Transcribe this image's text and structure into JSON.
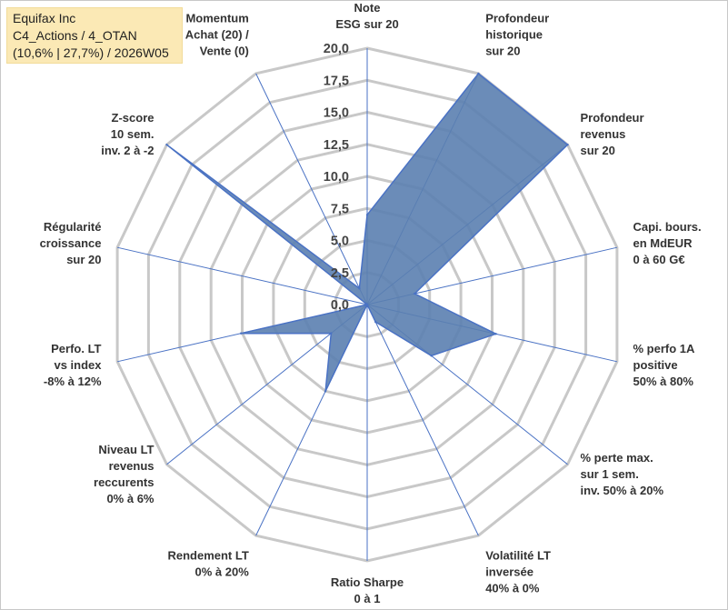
{
  "title_box": {
    "line1": "Equifax Inc",
    "line2": "C4_Actions / 4_OTAN",
    "line3": "(10,6% | 27,7%) / 2026W05"
  },
  "colors": {
    "fill": "#5b7fb0",
    "stroke": "#4a72c4",
    "grid": "#c8c8c8",
    "title_bg": "#fbe9b5"
  },
  "chart_data": {
    "type": "radar",
    "ylim": [
      0,
      20
    ],
    "ticks": [
      "0,0",
      "2,5",
      "5,0",
      "7,5",
      "10,0",
      "12,5",
      "15,0",
      "17,5",
      "20,0"
    ],
    "grid": true,
    "axes": [
      [
        "Note",
        "ESG sur 20"
      ],
      [
        "Profondeur",
        "historique",
        "sur 20"
      ],
      [
        "Profondeur",
        "revenus",
        "sur 20"
      ],
      [
        "Capi. bours.",
        "en MdEUR",
        "0 à 60 G€"
      ],
      [
        "% perfo 1A",
        "positive",
        "50% à 80%"
      ],
      [
        "% perte max.",
        "sur 1 sem.",
        "inv. 50% à 20%"
      ],
      [
        "Volatilité LT",
        "inversée",
        "40% à 0%"
      ],
      [
        "Ratio Sharpe",
        "0 à 1"
      ],
      [
        "Rendement LT",
        "0% à 20%"
      ],
      [
        "Niveau LT",
        "revenus",
        "reccurents",
        "0% à 6%"
      ],
      [
        "Perfo. LT",
        "vs index",
        "-8% à 12%"
      ],
      [
        "Régularité",
        "croissance",
        "sur 20"
      ],
      [
        "Z-score",
        "10 sem.",
        "inv. 2 à -2"
      ],
      [
        "Momentum",
        "Achat (20) /",
        "Vente (0)"
      ]
    ],
    "values": [
      7,
      20,
      20,
      3.8,
      10.3,
      6.4,
      1.5,
      0,
      7.5,
      3.6,
      10.1,
      0,
      20,
      1.4
    ]
  }
}
